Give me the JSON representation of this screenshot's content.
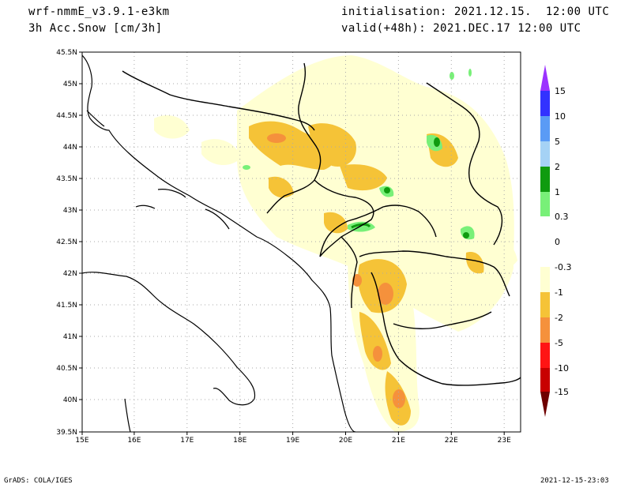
{
  "header": {
    "model": "wrf-nmmE_v3.9.1-e3km",
    "field": "3h Acc.Snow [cm/3h]",
    "init": "initialisation: 2021.12.15.  12:00 UTC",
    "valid": "valid(+48h): 2021.DEC.17 12:00 UTC"
  },
  "map": {
    "lon_labels": [
      "15E",
      "16E",
      "17E",
      "18E",
      "19E",
      "20E",
      "21E",
      "22E",
      "23E"
    ],
    "lat_labels": [
      "45.5N",
      "45N",
      "44.5N",
      "44N",
      "43.5N",
      "43N",
      "42.5N",
      "42N",
      "41.5N",
      "41N",
      "40.5N",
      "40N",
      "39.5N"
    ],
    "lon_range": [
      15,
      23.3
    ],
    "lat_range": [
      39.5,
      45.5
    ],
    "grid": "dotted"
  },
  "colorbar": {
    "labels": [
      "15",
      "10",
      "5",
      "2",
      "1",
      "0.3",
      "0",
      "-0.3",
      "-1",
      "-2",
      "-5",
      "-10",
      "-15"
    ],
    "colors": [
      "#3232ff",
      "#5a9bf5",
      "#a5d2f5",
      "#0f9b0f",
      "#78f078",
      "#ffffff",
      "#ffffff",
      "#ffffd2",
      "#f5c337",
      "#f5913c",
      "#ff1414",
      "#c80000",
      "#8c0000"
    ],
    "top_arrow": "#9b32ff",
    "bottom_arrow": "#6e0000"
  },
  "footer": {
    "left": "GrADS: COLA/IGES",
    "right": "2021-12-15-23:03"
  }
}
